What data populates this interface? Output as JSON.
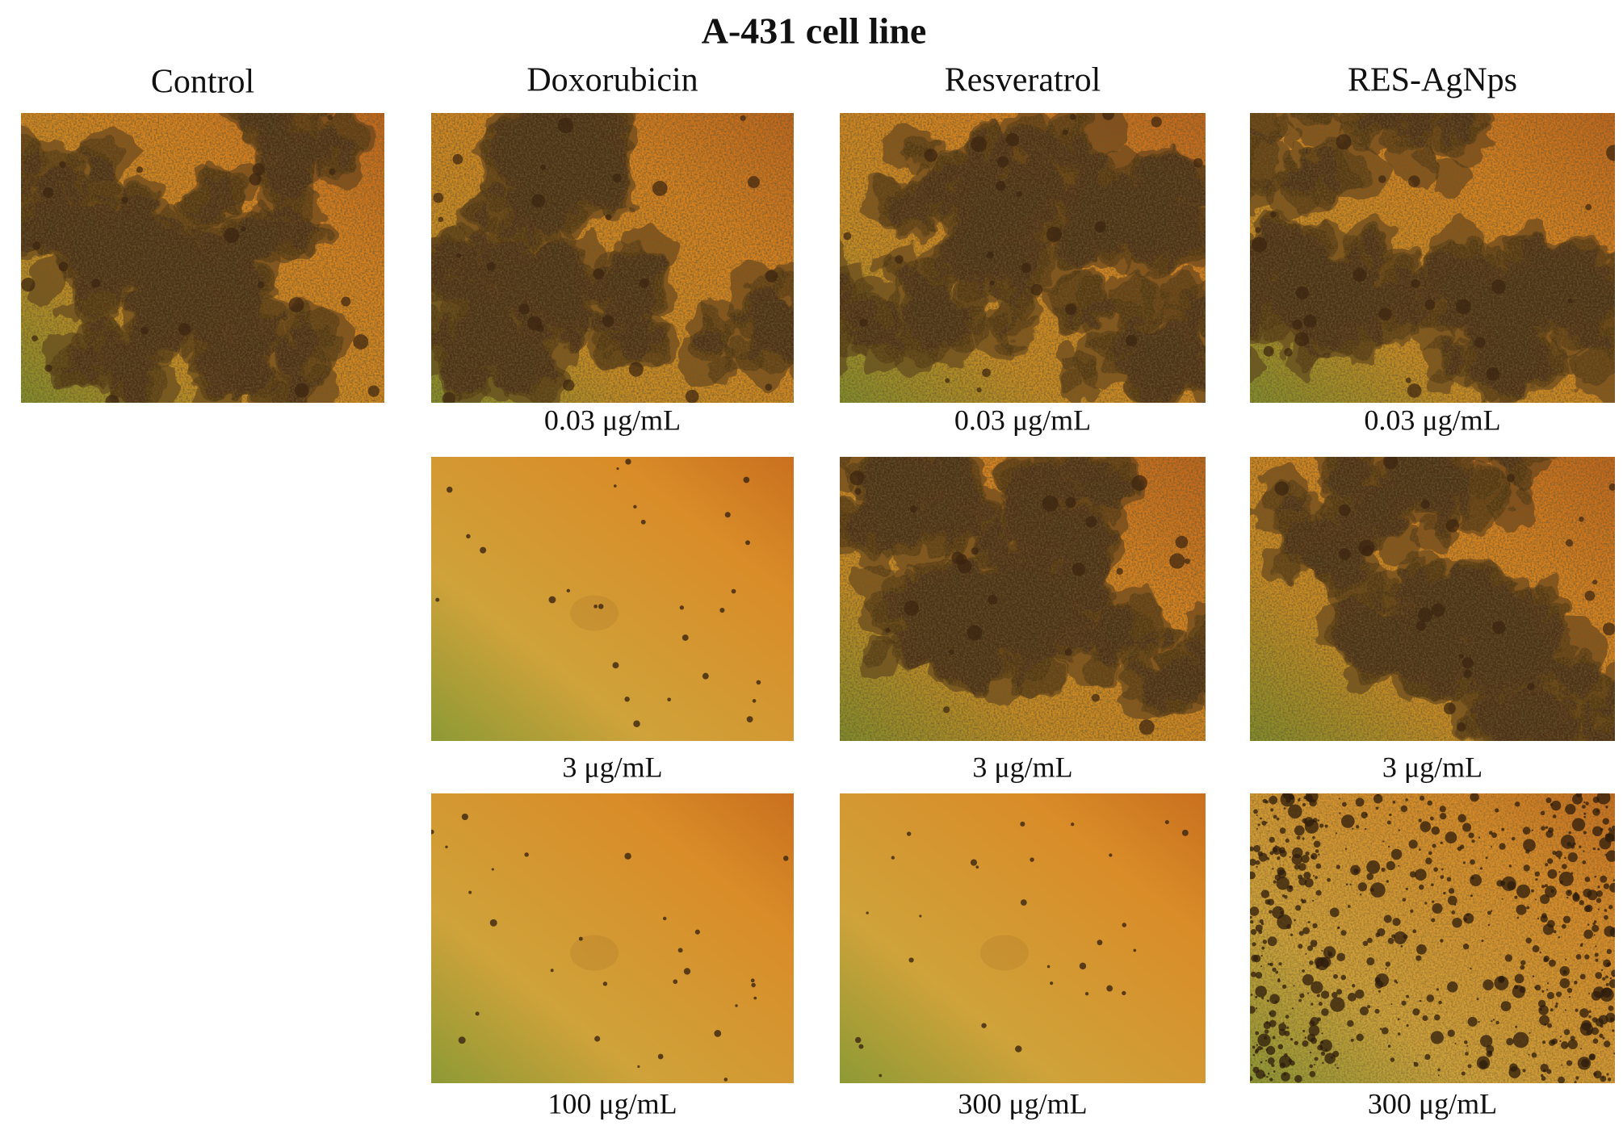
{
  "title": "A-431 cell line",
  "columns": [
    {
      "header": "Control"
    },
    {
      "header": "Doxorubicin",
      "labels": [
        "0.03 μg/mL",
        "3 μg/mL",
        "100 μg/mL"
      ]
    },
    {
      "header": "Resveratrol",
      "labels": [
        "0.03 μg/mL",
        "3 μg/mL",
        "300 μg/mL"
      ]
    },
    {
      "header": "RES-AgNps",
      "labels": [
        "0.03 μg/mL",
        "3 μg/mL",
        "300 μg/mL"
      ]
    }
  ]
}
